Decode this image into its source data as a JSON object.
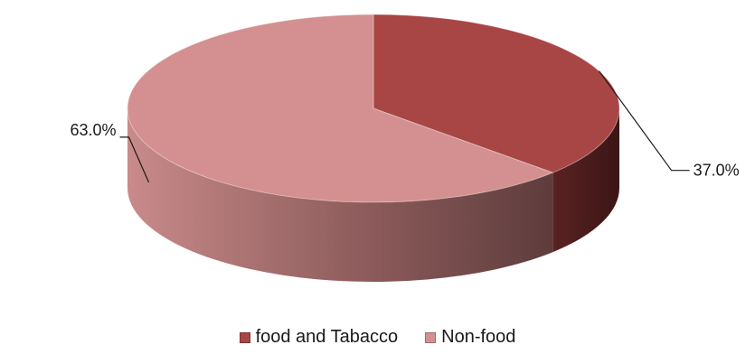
{
  "chart_data": {
    "type": "pie",
    "title": "",
    "categories": [
      "food and Tabacco",
      "Non-food"
    ],
    "values": [
      37.0,
      63.0
    ],
    "data_labels": [
      "37.0%",
      "63.0%"
    ],
    "legend_position": "bottom",
    "style": "3d",
    "colors": {
      "food and Tabacco": "#a84545",
      "Non-food": "#d49090"
    }
  }
}
